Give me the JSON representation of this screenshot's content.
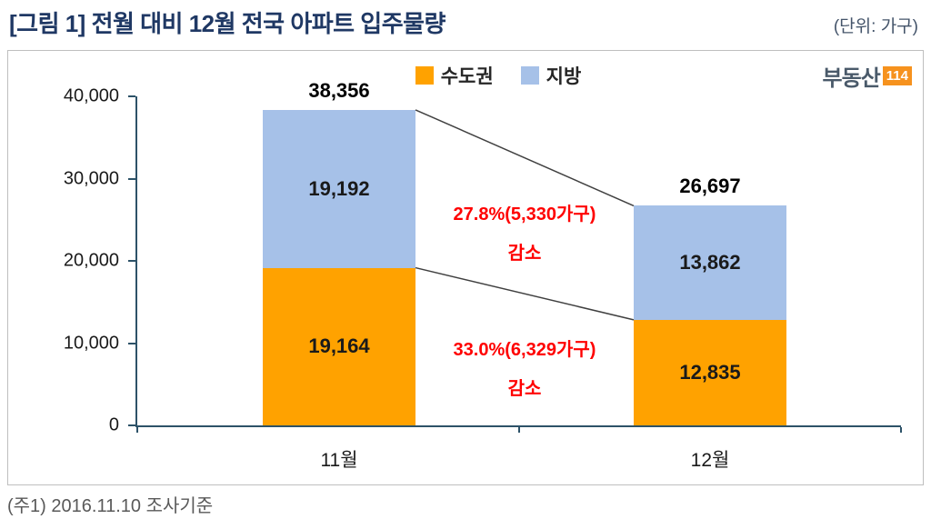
{
  "header": {
    "title": "[그림 1] 전월 대비 12월 전국 아파트 입주물량",
    "unit": "(단위: 가구)"
  },
  "logo": {
    "text": "부동산",
    "badge": "114"
  },
  "legend": [
    {
      "label": "수도권",
      "color": "#FFA200"
    },
    {
      "label": "지방",
      "color": "#A6C1E8"
    }
  ],
  "footer": {
    "note": "(주1) 2016.11.10  조사기준"
  },
  "chart_data": {
    "type": "bar",
    "stacked": true,
    "title": "[그림 1] 전월 대비 12월 전국 아파트 입주물량",
    "categories": [
      "11월",
      "12월"
    ],
    "series": [
      {
        "name": "수도권",
        "color": "#FFA200",
        "values": [
          19164,
          12835
        ]
      },
      {
        "name": "지방",
        "color": "#A6C1E8",
        "values": [
          19192,
          13862
        ]
      }
    ],
    "totals": [
      38356,
      26697
    ],
    "xlabel": "",
    "ylabel": "",
    "ylim": [
      0,
      40000
    ],
    "yticks": [
      0,
      10000,
      20000,
      30000,
      40000
    ],
    "grid": false,
    "legend_position": "top-center",
    "annotations": [
      {
        "line1": "27.8%(5,330가구)",
        "line2": "감소",
        "refers_to": "지방"
      },
      {
        "line1": "33.0%(6,329가구)",
        "line2": "감소",
        "refers_to": "수도권"
      }
    ]
  }
}
